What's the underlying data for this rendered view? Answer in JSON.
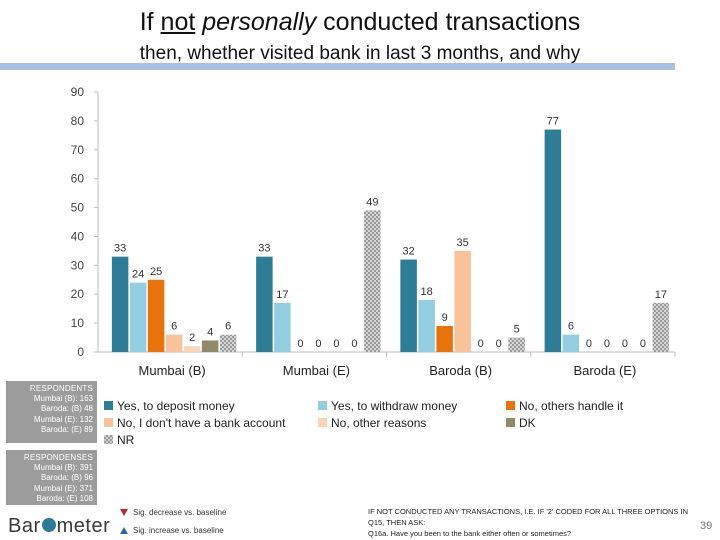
{
  "header": {
    "title_pre": "If ",
    "title_not": "not",
    "title_mid": " ",
    "title_personally": "personally",
    "title_post": " conducted transactions",
    "subtitle": "then, whether visited bank in last 3 months, and why"
  },
  "respondents": {
    "heading": "RESPONDENTS",
    "lines": [
      "Mumbai (B): 163",
      "Baroda: (B) 48",
      "Mumbai (E): 132",
      "Baroda: (E) 89"
    ]
  },
  "responses": {
    "heading": "RESPONDENSES",
    "lines": [
      "Mumbai (B): 391",
      "Baroda: (B) 96",
      "Mumbai (E): 371",
      "Baroda: (E) 108"
    ]
  },
  "sig": {
    "decrease": "Sig. decrease vs. baseline",
    "increase": "Sig. increase vs. baseline"
  },
  "footnote": {
    "line1": "IF NOT CONDUCTED ANY TRANSACTIONS, I.E. IF '2' CODED FOR ALL THREE OPTIONS IN",
    "line2": "Q15, THEN ASK:",
    "line3": "Q16a. Have you been to the bank either often or sometimes?"
  },
  "logo": {
    "pre": "Bar",
    "post": "meter"
  },
  "page_number": "39",
  "chart_data": {
    "type": "bar",
    "title": "If not personally conducted transactions then, whether visited bank in last 3 months, and why",
    "xlabel": "",
    "ylabel": "",
    "ylim": [
      0,
      90
    ],
    "yticks": [
      0,
      10,
      20,
      30,
      40,
      50,
      60,
      70,
      80,
      90
    ],
    "categories": [
      "Mumbai (B)",
      "Mumbai (E)",
      "Baroda (B)",
      "Baroda (E)"
    ],
    "series": [
      {
        "name": "Yes, to deposit money",
        "color": "#2e7c95",
        "pattern": false,
        "values": [
          33,
          33,
          32,
          77
        ]
      },
      {
        "name": "Yes, to withdraw money",
        "color": "#92cde0",
        "pattern": false,
        "values": [
          24,
          17,
          18,
          6
        ]
      },
      {
        "name": "No, others handle it",
        "color": "#e8720c",
        "pattern": false,
        "values": [
          25,
          0,
          9,
          0
        ]
      },
      {
        "name": "No, I don't have a bank account",
        "color": "#f8c39b",
        "pattern": false,
        "values": [
          6,
          0,
          35,
          0
        ]
      },
      {
        "name": "No, other reasons",
        "color": "#fbd3b5",
        "pattern": false,
        "values": [
          2,
          0,
          0,
          0
        ]
      },
      {
        "name": "DK",
        "color": "#8f8a6a",
        "pattern": false,
        "values": [
          4,
          0,
          0,
          0
        ]
      },
      {
        "name": "NR",
        "color": "#c9c9c9",
        "pattern": true,
        "values": [
          6,
          49,
          5,
          17
        ]
      }
    ],
    "grid": false,
    "legend_position": "bottom"
  }
}
